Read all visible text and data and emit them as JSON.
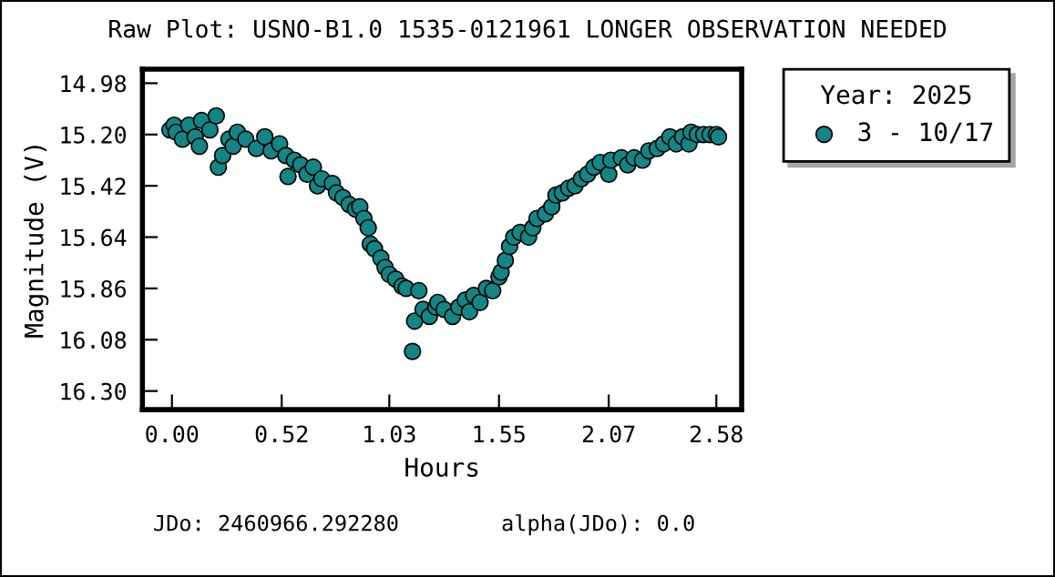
{
  "chart_data": {
    "type": "scatter",
    "title": "Raw Plot: USNO-B1.0 1535-0121961 LONGER OBSERVATION NEEDED",
    "xlabel": "Hours",
    "ylabel": "Magnitude (V)",
    "legend_title": "Year: 2025",
    "annotations": [
      "JDo: 2460966.292280",
      "alpha(JDo): 0.0"
    ],
    "xlim": [
      -0.14,
      2.7
    ],
    "ylim": [
      16.38,
      14.92
    ],
    "xticks": [
      {
        "value": 0,
        "label": "0.00"
      },
      {
        "value": 0.52,
        "label": "0.52"
      },
      {
        "value": 1.03,
        "label": "1.03"
      },
      {
        "value": 1.55,
        "label": "1.55"
      },
      {
        "value": 2.07,
        "label": "2.07"
      },
      {
        "value": 2.58,
        "label": "2.58"
      }
    ],
    "yticks": [
      {
        "value": 14.98,
        "label": "14.98"
      },
      {
        "value": 15.2,
        "label": "15.20"
      },
      {
        "value": 15.42,
        "label": "15.42"
      },
      {
        "value": 15.64,
        "label": "15.64"
      },
      {
        "value": 15.86,
        "label": "15.86"
      },
      {
        "value": 16.08,
        "label": "16.08"
      },
      {
        "value": 16.3,
        "label": "16.30"
      }
    ],
    "grid": false,
    "legend": "right",
    "marker": "circle",
    "series": [
      {
        "name": "3 - 10/17",
        "color": "#118684",
        "x": [
          -0.01,
          0.01,
          0.02,
          0.05,
          0.08,
          0.11,
          0.13,
          0.14,
          0.18,
          0.21,
          0.22,
          0.24,
          0.27,
          0.29,
          0.31,
          0.35,
          0.4,
          0.44,
          0.47,
          0.51,
          0.54,
          0.55,
          0.58,
          0.61,
          0.64,
          0.67,
          0.69,
          0.71,
          0.76,
          0.78,
          0.81,
          0.84,
          0.87,
          0.89,
          0.91,
          0.93,
          0.94,
          0.96,
          0.99,
          1.01,
          1.03,
          1.06,
          1.09,
          1.11,
          1.14,
          1.15,
          1.17,
          1.19,
          1.22,
          1.25,
          1.26,
          1.29,
          1.33,
          1.36,
          1.39,
          1.41,
          1.43,
          1.46,
          1.49,
          1.52,
          1.55,
          1.56,
          1.58,
          1.6,
          1.62,
          1.65,
          1.69,
          1.71,
          1.73,
          1.77,
          1.8,
          1.82,
          1.85,
          1.88,
          1.91,
          1.94,
          1.97,
          2.0,
          2.03,
          2.07,
          2.08,
          2.13,
          2.16,
          2.19,
          2.23,
          2.26,
          2.3,
          2.33,
          2.36,
          2.39,
          2.42,
          2.45,
          2.46,
          2.49,
          2.52,
          2.55,
          2.58,
          2.59
        ],
        "values": [
          15.18,
          15.16,
          15.19,
          15.22,
          15.16,
          15.21,
          15.25,
          15.14,
          15.18,
          15.12,
          15.34,
          15.29,
          15.22,
          15.25,
          15.19,
          15.22,
          15.26,
          15.21,
          15.27,
          15.24,
          15.29,
          15.38,
          15.31,
          15.33,
          15.37,
          15.34,
          15.42,
          15.39,
          15.41,
          15.45,
          15.47,
          15.5,
          15.52,
          15.51,
          15.56,
          15.6,
          15.67,
          15.69,
          15.73,
          15.77,
          15.8,
          15.82,
          15.85,
          15.86,
          16.13,
          16.0,
          15.87,
          15.95,
          15.98,
          15.94,
          15.92,
          15.95,
          15.98,
          15.94,
          15.91,
          15.96,
          15.89,
          15.92,
          15.86,
          15.87,
          15.81,
          15.79,
          15.74,
          15.68,
          15.64,
          15.62,
          15.64,
          15.6,
          15.56,
          15.54,
          15.51,
          15.46,
          15.45,
          15.43,
          15.42,
          15.39,
          15.37,
          15.34,
          15.32,
          15.37,
          15.31,
          15.3,
          15.33,
          15.3,
          15.31,
          15.27,
          15.26,
          15.24,
          15.21,
          15.24,
          15.21,
          15.24,
          15.19,
          15.2,
          15.2,
          15.2,
          15.2,
          15.21
        ]
      }
    ]
  }
}
